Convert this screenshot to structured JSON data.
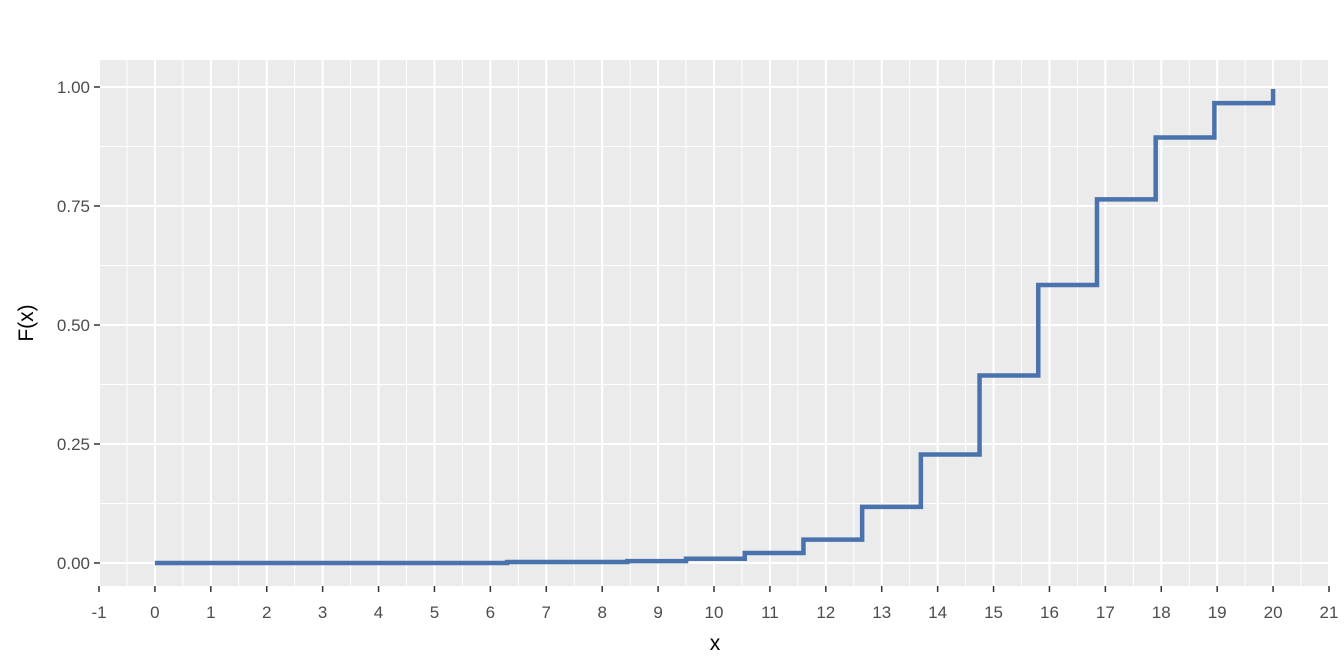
{
  "chart_data": {
    "type": "line",
    "style": "step",
    "title": "",
    "xlabel": "x",
    "ylabel": "F(x)",
    "xlim": [
      -1,
      21
    ],
    "ylim": [
      0,
      1
    ],
    "x_ticks": [
      "-1",
      "0",
      "1",
      "2",
      "3",
      "4",
      "5",
      "6",
      "7",
      "8",
      "9",
      "10",
      "11",
      "12",
      "13",
      "14",
      "15",
      "16",
      "17",
      "18",
      "19",
      "20",
      "21"
    ],
    "y_ticks": [
      "0.00",
      "0.25",
      "0.50",
      "0.75",
      "1.00"
    ],
    "grid": true,
    "legend": "none",
    "series": [
      {
        "color": "#4a72ad",
        "x": [
          0,
          6.3,
          8.45,
          9.5,
          10.55,
          11.6,
          12.65,
          13.7,
          14.75,
          15.8,
          16.85,
          17.9,
          18.95,
          20
        ],
        "y": [
          0.0,
          0.002,
          0.004,
          0.009,
          0.021,
          0.049,
          0.118,
          0.228,
          0.394,
          0.584,
          0.764,
          0.894,
          0.966,
          0.996
        ]
      }
    ],
    "colors": {
      "panel": "#ebebeb",
      "grid": "#ffffff",
      "line": "#4a72ad"
    }
  }
}
